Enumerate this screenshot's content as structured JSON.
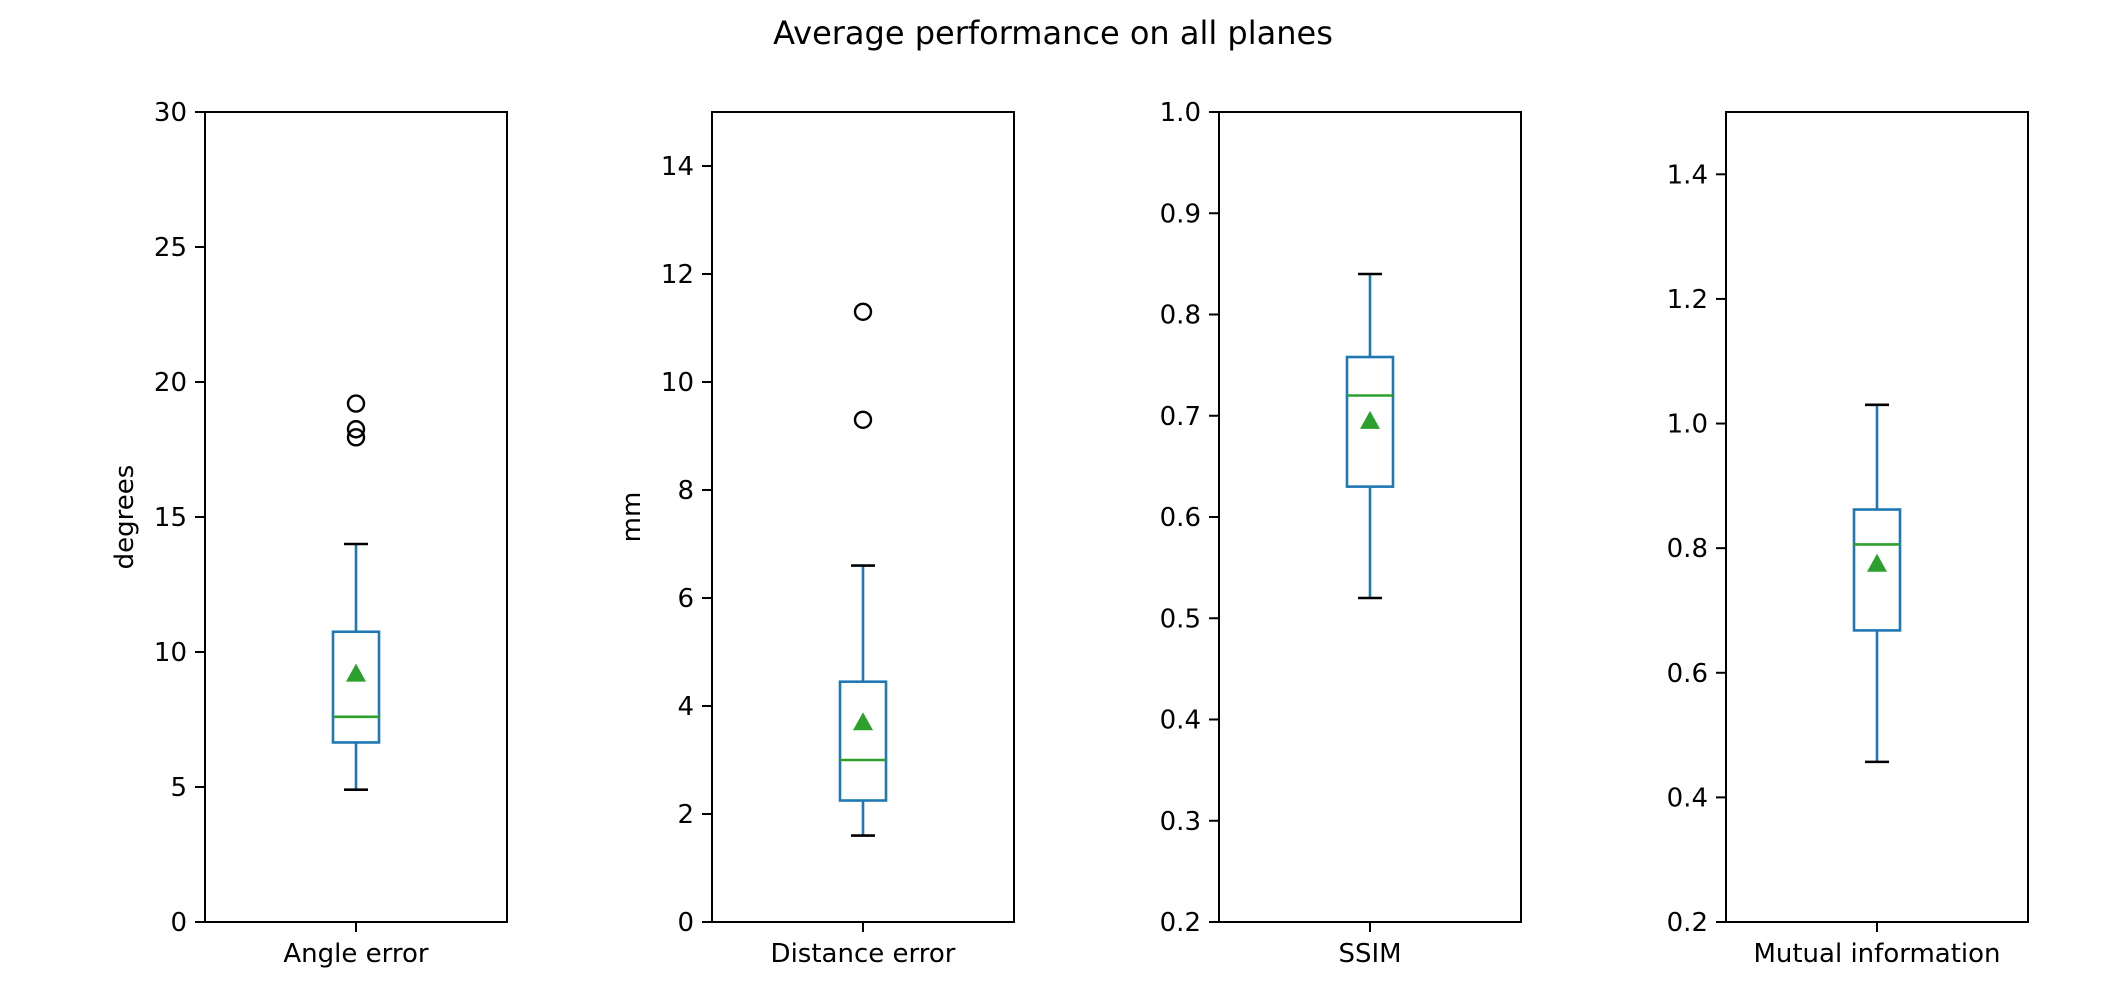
{
  "chart_data": {
    "type": "boxplot",
    "title": "Average performance on all planes",
    "panels": [
      {
        "category": "Angle error",
        "ylabel": "degrees",
        "ylim": [
          0,
          30
        ],
        "yticks": [
          0,
          5,
          10,
          15,
          20,
          25,
          30
        ],
        "ytick_labels": [
          "0",
          "5",
          "10",
          "15",
          "20",
          "25",
          "30"
        ],
        "whisker_low": 4.9,
        "q1": 6.65,
        "median": 7.6,
        "q3": 10.75,
        "whisker_high": 14.0,
        "mean": 9.2,
        "outliers": [
          17.95,
          18.25,
          19.2
        ]
      },
      {
        "category": "Distance error",
        "ylabel": "mm",
        "ylim": [
          0,
          15
        ],
        "yticks": [
          0,
          2,
          4,
          6,
          8,
          10,
          12,
          14
        ],
        "ytick_labels": [
          "0",
          "2",
          "4",
          "6",
          "8",
          "10",
          "12",
          "14"
        ],
        "whisker_low": 1.6,
        "q1": 2.25,
        "median": 3.0,
        "q3": 4.45,
        "whisker_high": 6.6,
        "mean": 3.7,
        "outliers": [
          9.3,
          11.3
        ]
      },
      {
        "category": "SSIM",
        "ylabel": "",
        "ylim": [
          0.2,
          1.0
        ],
        "yticks": [
          0.2,
          0.3,
          0.4,
          0.5,
          0.6,
          0.7,
          0.8,
          0.9,
          1.0
        ],
        "ytick_labels": [
          "0.2",
          "0.3",
          "0.4",
          "0.5",
          "0.6",
          "0.7",
          "0.8",
          "0.9",
          "1.0"
        ],
        "whisker_low": 0.52,
        "q1": 0.63,
        "median": 0.72,
        "q3": 0.758,
        "whisker_high": 0.84,
        "mean": 0.695,
        "outliers": []
      },
      {
        "category": "Mutual information",
        "ylabel": "",
        "ylim": [
          0.2,
          1.5
        ],
        "yticks": [
          0.2,
          0.4,
          0.6,
          0.8,
          1.0,
          1.2,
          1.4
        ],
        "ytick_labels": [
          "0.2",
          "0.4",
          "0.6",
          "0.8",
          "1.0",
          "1.2",
          "1.4"
        ],
        "whisker_low": 0.457,
        "q1": 0.668,
        "median": 0.806,
        "q3": 0.862,
        "whisker_high": 1.03,
        "mean": 0.775,
        "outliers": []
      }
    ],
    "colors": {
      "box": "#1f77b4",
      "median": "#2ca02c",
      "mean": "#2ca02c",
      "cap": "#000000",
      "flier": "#000000"
    }
  }
}
